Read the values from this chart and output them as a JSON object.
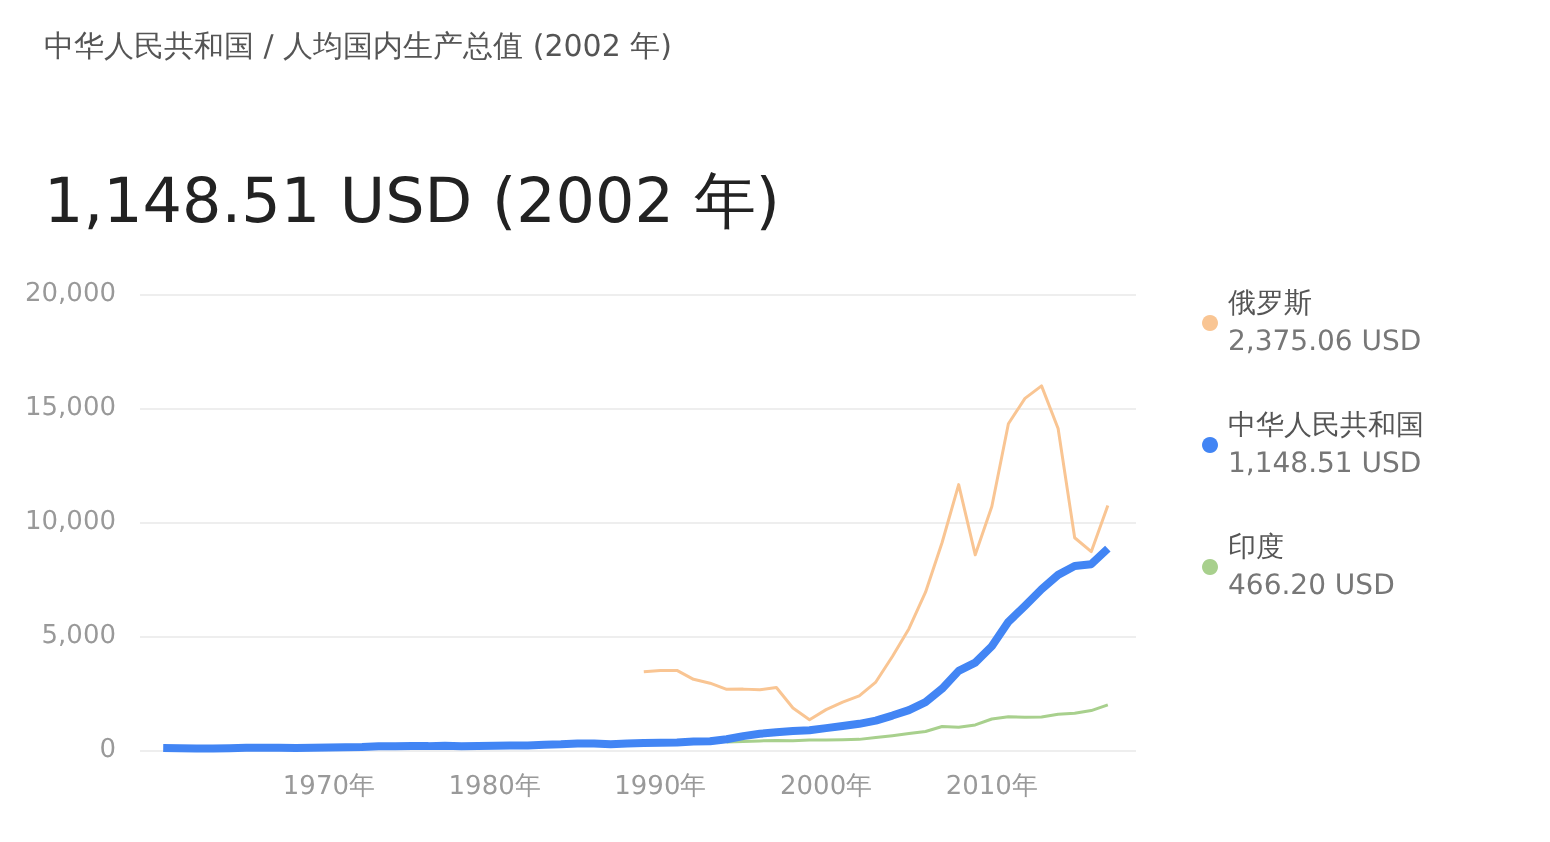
{
  "chart_data": {
    "type": "line",
    "title": "中华人民共和国 / 人均国内生产总值 (2002 年)",
    "subtitle": "1,148.51 USD (2002 年)",
    "x": [
      1960,
      1961,
      1962,
      1963,
      1964,
      1965,
      1966,
      1967,
      1968,
      1969,
      1970,
      1971,
      1972,
      1973,
      1974,
      1975,
      1976,
      1977,
      1978,
      1979,
      1980,
      1981,
      1982,
      1983,
      1984,
      1985,
      1986,
      1987,
      1988,
      1989,
      1990,
      1991,
      1992,
      1993,
      1994,
      1995,
      1996,
      1997,
      1998,
      1999,
      2000,
      2001,
      2002,
      2003,
      2004,
      2005,
      2006,
      2007,
      2008,
      2009,
      2010,
      2011,
      2012,
      2013,
      2014,
      2015,
      2016,
      2017
    ],
    "series": [
      {
        "name": "俄罗斯",
        "color": "#f9c593",
        "values": [
          null,
          null,
          null,
          null,
          null,
          null,
          null,
          null,
          null,
          null,
          null,
          null,
          null,
          null,
          null,
          null,
          null,
          null,
          null,
          null,
          null,
          null,
          null,
          null,
          null,
          null,
          null,
          null,
          null,
          3430,
          3490,
          3490,
          3100,
          2930,
          2660,
          2670,
          2640,
          2740,
          1840,
          1330,
          1770,
          2100,
          2375.06,
          2980,
          4100,
          5320,
          6920,
          9100,
          11640,
          8560,
          10680,
          14310,
          15420,
          15970,
          14100,
          9310,
          8700,
          10720
        ]
      },
      {
        "name": "中华人民共和国",
        "color": "#4285f4",
        "values": [
          90,
          80,
          70,
          70,
          80,
          100,
          100,
          100,
          90,
          100,
          110,
          120,
          130,
          160,
          160,
          180,
          170,
          190,
          160,
          180,
          190,
          200,
          200,
          230,
          250,
          290,
          280,
          250,
          280,
          310,
          320,
          330,
          370,
          380,
          470,
          610,
          710,
          780,
          830,
          870,
          960,
          1050,
          1148.51,
          1290,
          1510,
          1750,
          2100,
          2690,
          3470,
          3830,
          4550,
          5620,
          6320,
          7050,
          7680,
          8070,
          8150,
          8830
        ]
      },
      {
        "name": "印度",
        "color": "#a8d08d",
        "values": [
          null,
          null,
          null,
          null,
          null,
          null,
          null,
          null,
          null,
          null,
          null,
          null,
          null,
          null,
          null,
          null,
          null,
          null,
          null,
          null,
          null,
          null,
          null,
          null,
          null,
          null,
          null,
          null,
          null,
          null,
          null,
          null,
          null,
          null,
          350,
          370,
          400,
          420,
          410,
          440,
          440,
          450,
          466.2,
          550,
          630,
          720,
          810,
          1030,
          1000,
          1100,
          1360,
          1460,
          1440,
          1450,
          1570,
          1610,
          1730,
          1980
        ]
      }
    ],
    "annotations": [
      "2,375.06 USD",
      "1,148.51 USD",
      "466.20 USD"
    ],
    "xlim": [
      1958.6,
      2018.7
    ],
    "xticks": [
      {
        "value": 1970,
        "label": "1970年"
      },
      {
        "value": 1980,
        "label": "1980年"
      },
      {
        "value": 1990,
        "label": "1990年"
      },
      {
        "value": 2000,
        "label": "2000年"
      },
      {
        "value": 2010,
        "label": "2010年"
      }
    ],
    "ylim": [
      0,
      20000
    ],
    "yticks": [
      0,
      {
        "value": 5000,
        "label": "5,000"
      },
      {
        "value": 10000,
        "label": "10,000"
      },
      {
        "value": 15000,
        "label": "15,000"
      },
      {
        "value": 20000,
        "label": "20,000"
      }
    ],
    "grid": "y",
    "legend": "right"
  }
}
